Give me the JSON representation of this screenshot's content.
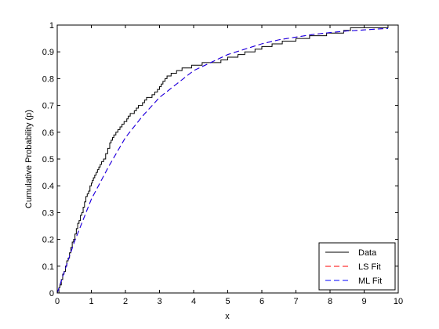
{
  "chart_data": {
    "type": "line",
    "xlabel": "x",
    "ylabel": "Cumulative Probability (p)",
    "xlim": [
      0,
      10
    ],
    "ylim": [
      0,
      1
    ],
    "xticks": [
      0,
      1,
      2,
      3,
      4,
      5,
      6,
      7,
      8,
      9,
      10
    ],
    "yticks": [
      0,
      0.1,
      0.2,
      0.3,
      0.4,
      0.5,
      0.6,
      0.7,
      0.8,
      0.9,
      1
    ],
    "xtick_labels": [
      "0",
      "1",
      "2",
      "3",
      "4",
      "5",
      "6",
      "7",
      "8",
      "9",
      "10"
    ],
    "ytick_labels": [
      "0",
      "0.1",
      "0.2",
      "0.3",
      "0.4",
      "0.5",
      "0.6",
      "0.7",
      "0.8",
      "0.9",
      "1"
    ],
    "grid": false,
    "legend_position": "bottom-right",
    "series": [
      {
        "name": "Data",
        "style": "step",
        "color": "#000000",
        "dash": "solid",
        "x": [
          0.0,
          0.05,
          0.08,
          0.12,
          0.16,
          0.2,
          0.24,
          0.28,
          0.32,
          0.36,
          0.4,
          0.44,
          0.48,
          0.52,
          0.56,
          0.6,
          0.64,
          0.68,
          0.72,
          0.76,
          0.8,
          0.84,
          0.88,
          0.92,
          0.96,
          1.0,
          1.03,
          1.06,
          1.1,
          1.14,
          1.18,
          1.22,
          1.26,
          1.3,
          1.36,
          1.42,
          1.48,
          1.54,
          1.58,
          1.62,
          1.66,
          1.72,
          1.78,
          1.84,
          1.9,
          1.96,
          2.0,
          2.04,
          2.08,
          2.14,
          2.2,
          2.26,
          2.32,
          2.38,
          2.44,
          2.5,
          2.56,
          2.62,
          2.7,
          2.78,
          2.86,
          2.94,
          3.0,
          3.05,
          3.1,
          3.16,
          3.22,
          3.28,
          3.34,
          3.42,
          3.5,
          3.58,
          3.66,
          3.74,
          3.84,
          3.94,
          4.04,
          4.14,
          4.25,
          4.6,
          4.8,
          5.0,
          5.3,
          5.5,
          5.8,
          6.0,
          6.3,
          6.6,
          7.0,
          7.4,
          7.9,
          8.4,
          8.6,
          9.7
        ],
        "y": [
          0.0,
          0.02,
          0.03,
          0.05,
          0.07,
          0.08,
          0.1,
          0.12,
          0.13,
          0.15,
          0.17,
          0.19,
          0.2,
          0.22,
          0.24,
          0.26,
          0.27,
          0.29,
          0.3,
          0.32,
          0.34,
          0.36,
          0.37,
          0.38,
          0.4,
          0.41,
          0.42,
          0.43,
          0.44,
          0.45,
          0.46,
          0.47,
          0.48,
          0.49,
          0.5,
          0.52,
          0.54,
          0.56,
          0.57,
          0.58,
          0.59,
          0.6,
          0.61,
          0.62,
          0.63,
          0.64,
          0.64,
          0.65,
          0.66,
          0.67,
          0.67,
          0.68,
          0.69,
          0.7,
          0.7,
          0.71,
          0.72,
          0.73,
          0.73,
          0.74,
          0.75,
          0.76,
          0.77,
          0.78,
          0.79,
          0.8,
          0.81,
          0.81,
          0.82,
          0.82,
          0.83,
          0.83,
          0.84,
          0.84,
          0.84,
          0.85,
          0.85,
          0.85,
          0.86,
          0.86,
          0.87,
          0.88,
          0.89,
          0.9,
          0.91,
          0.92,
          0.93,
          0.94,
          0.95,
          0.96,
          0.97,
          0.98,
          0.99,
          1.0
        ]
      },
      {
        "name": "LS Fit",
        "style": "line",
        "color": "#ff0000",
        "dash": "dashed",
        "x": [
          0,
          0.5,
          1,
          1.5,
          2,
          2.5,
          3,
          3.5,
          4,
          4.5,
          5,
          5.5,
          6,
          6.5,
          7,
          7.5,
          8,
          8.5,
          9,
          9.5,
          9.7
        ],
        "y": [
          0.0,
          0.19,
          0.35,
          0.47,
          0.58,
          0.66,
          0.73,
          0.78,
          0.83,
          0.86,
          0.89,
          0.91,
          0.93,
          0.945,
          0.955,
          0.965,
          0.972,
          0.978,
          0.982,
          0.986,
          0.987
        ]
      },
      {
        "name": "ML Fit",
        "style": "line",
        "color": "#0000ff",
        "dash": "dashed",
        "x": [
          0,
          0.5,
          1,
          1.5,
          2,
          2.5,
          3,
          3.5,
          4,
          4.5,
          5,
          5.5,
          6,
          6.5,
          7,
          7.5,
          8,
          8.5,
          9,
          9.5,
          9.7
        ],
        "y": [
          0.0,
          0.19,
          0.35,
          0.47,
          0.58,
          0.66,
          0.73,
          0.78,
          0.83,
          0.86,
          0.89,
          0.91,
          0.93,
          0.945,
          0.955,
          0.965,
          0.972,
          0.978,
          0.982,
          0.986,
          0.987
        ]
      }
    ]
  }
}
